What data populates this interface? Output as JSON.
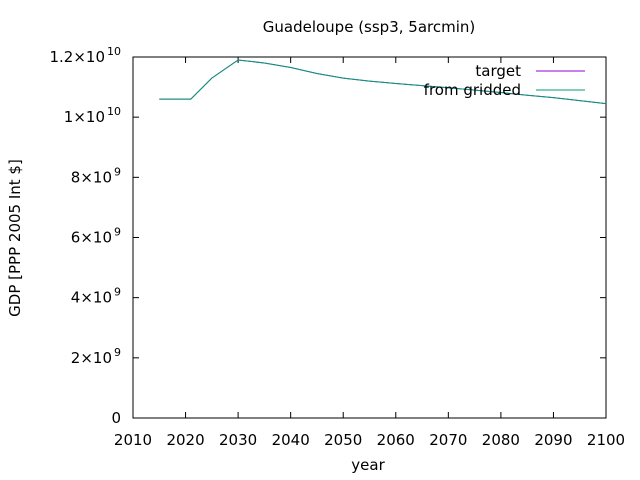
{
  "chart_data": {
    "type": "line",
    "title": "Guadeloupe (ssp3, 5arcmin)",
    "xlabel": "year",
    "ylabel": "GDP [PPP 2005 Int $]",
    "xlim": [
      2010,
      2100
    ],
    "ylim": [
      0,
      12000000000
    ],
    "x_ticks": [
      2010,
      2020,
      2030,
      2040,
      2050,
      2060,
      2070,
      2080,
      2090,
      2100
    ],
    "y_ticks": [
      {
        "value": 0,
        "base": "0",
        "exp": ""
      },
      {
        "value": 2000000000,
        "base": "2×10",
        "exp": "9"
      },
      {
        "value": 4000000000,
        "base": "4×10",
        "exp": "9"
      },
      {
        "value": 6000000000,
        "base": "6×10",
        "exp": "9"
      },
      {
        "value": 8000000000,
        "base": "8×10",
        "exp": "9"
      },
      {
        "value": 10000000000,
        "base": "1×10",
        "exp": "10"
      },
      {
        "value": 12000000000,
        "base": "1.2×10",
        "exp": "10"
      }
    ],
    "grid": false,
    "legend_position": "top-right",
    "series": [
      {
        "name": "target",
        "color": "#9400d3",
        "x": [
          2015,
          2021,
          2025,
          2030,
          2035,
          2040,
          2045,
          2050,
          2055,
          2060,
          2065,
          2070,
          2075,
          2080,
          2085,
          2090,
          2095,
          2100
        ],
        "y": [
          10600000000,
          10600000000,
          11300000000,
          11900000000,
          11800000000,
          11650000000,
          11450000000,
          11300000000,
          11200000000,
          11120000000,
          11050000000,
          10980000000,
          10900000000,
          10820000000,
          10730000000,
          10650000000,
          10550000000,
          10450000000
        ]
      },
      {
        "name": "from gridded",
        "color": "#009e73",
        "x": [
          2015,
          2021,
          2025,
          2030,
          2035,
          2040,
          2045,
          2050,
          2055,
          2060,
          2065,
          2070,
          2075,
          2080,
          2085,
          2090,
          2095,
          2100
        ],
        "y": [
          10600000000,
          10600000000,
          11300000000,
          11900000000,
          11800000000,
          11650000000,
          11450000000,
          11300000000,
          11200000000,
          11120000000,
          11050000000,
          10980000000,
          10900000000,
          10820000000,
          10730000000,
          10650000000,
          10550000000,
          10450000000
        ]
      }
    ]
  }
}
